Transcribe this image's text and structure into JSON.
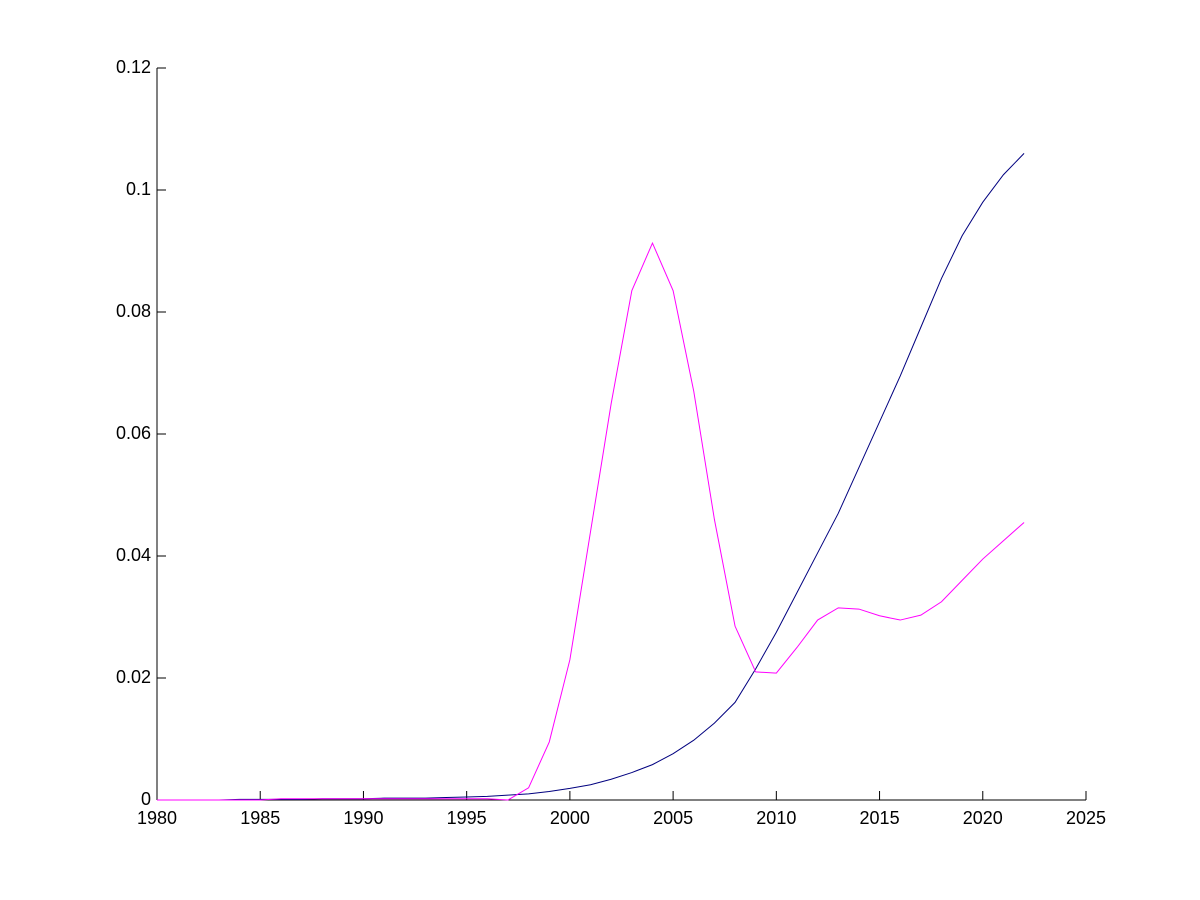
{
  "chart_data": {
    "type": "line",
    "x": [
      1980,
      1981,
      1982,
      1983,
      1984,
      1985,
      1986,
      1987,
      1988,
      1989,
      1990,
      1991,
      1992,
      1993,
      1994,
      1995,
      1996,
      1997,
      1998,
      1999,
      2000,
      2001,
      2002,
      2003,
      2004,
      2005,
      2006,
      2007,
      2008,
      2009,
      2010,
      2011,
      2012,
      2013,
      2014,
      2015,
      2016,
      2017,
      2018,
      2019,
      2020,
      2021,
      2022
    ],
    "series": [
      {
        "color": "#00007f",
        "values": [
          0,
          0,
          0,
          0,
          0.0001,
          0.0001,
          0.0001,
          0.0001,
          0.0002,
          0.0002,
          0.0002,
          0.0003,
          0.0003,
          0.0003,
          0.0004,
          0.0005,
          0.0006,
          0.0008,
          0.001,
          0.0014,
          0.0019,
          0.0025,
          0.0034,
          0.0045,
          0.0058,
          0.0076,
          0.0098,
          0.0126,
          0.016,
          0.0215,
          0.0275,
          0.034,
          0.0405,
          0.047,
          0.0545,
          0.062,
          0.0695,
          0.0775,
          0.0855,
          0.0925,
          0.098,
          0.1025,
          0.106
        ]
      },
      {
        "color": "#ff00ff",
        "values": [
          0,
          0,
          0,
          0,
          0,
          0,
          0.0002,
          0.0002,
          0.0002,
          0.0002,
          0.0002,
          0.0002,
          0.0002,
          0.0002,
          0.0002,
          0.0002,
          0.0002,
          0,
          0.002,
          0.0095,
          0.023,
          0.044,
          0.065,
          0.0835,
          0.0913,
          0.0835,
          0.067,
          0.046,
          0.0285,
          0.021,
          0.0208,
          0.025,
          0.0295,
          0.0315,
          0.0313,
          0.0302,
          0.0295,
          0.0303,
          0.0325,
          0.036,
          0.0395,
          0.0425,
          0.0455
        ]
      }
    ],
    "xlim": [
      1980,
      2025
    ],
    "xticks": [
      1980,
      1985,
      1990,
      1995,
      2000,
      2005,
      2010,
      2015,
      2020,
      2025
    ],
    "ylim": [
      0,
      0.12
    ],
    "yticks": [
      0,
      0.02,
      0.04,
      0.06,
      0.08,
      0.1,
      0.12
    ],
    "grid": false
  }
}
